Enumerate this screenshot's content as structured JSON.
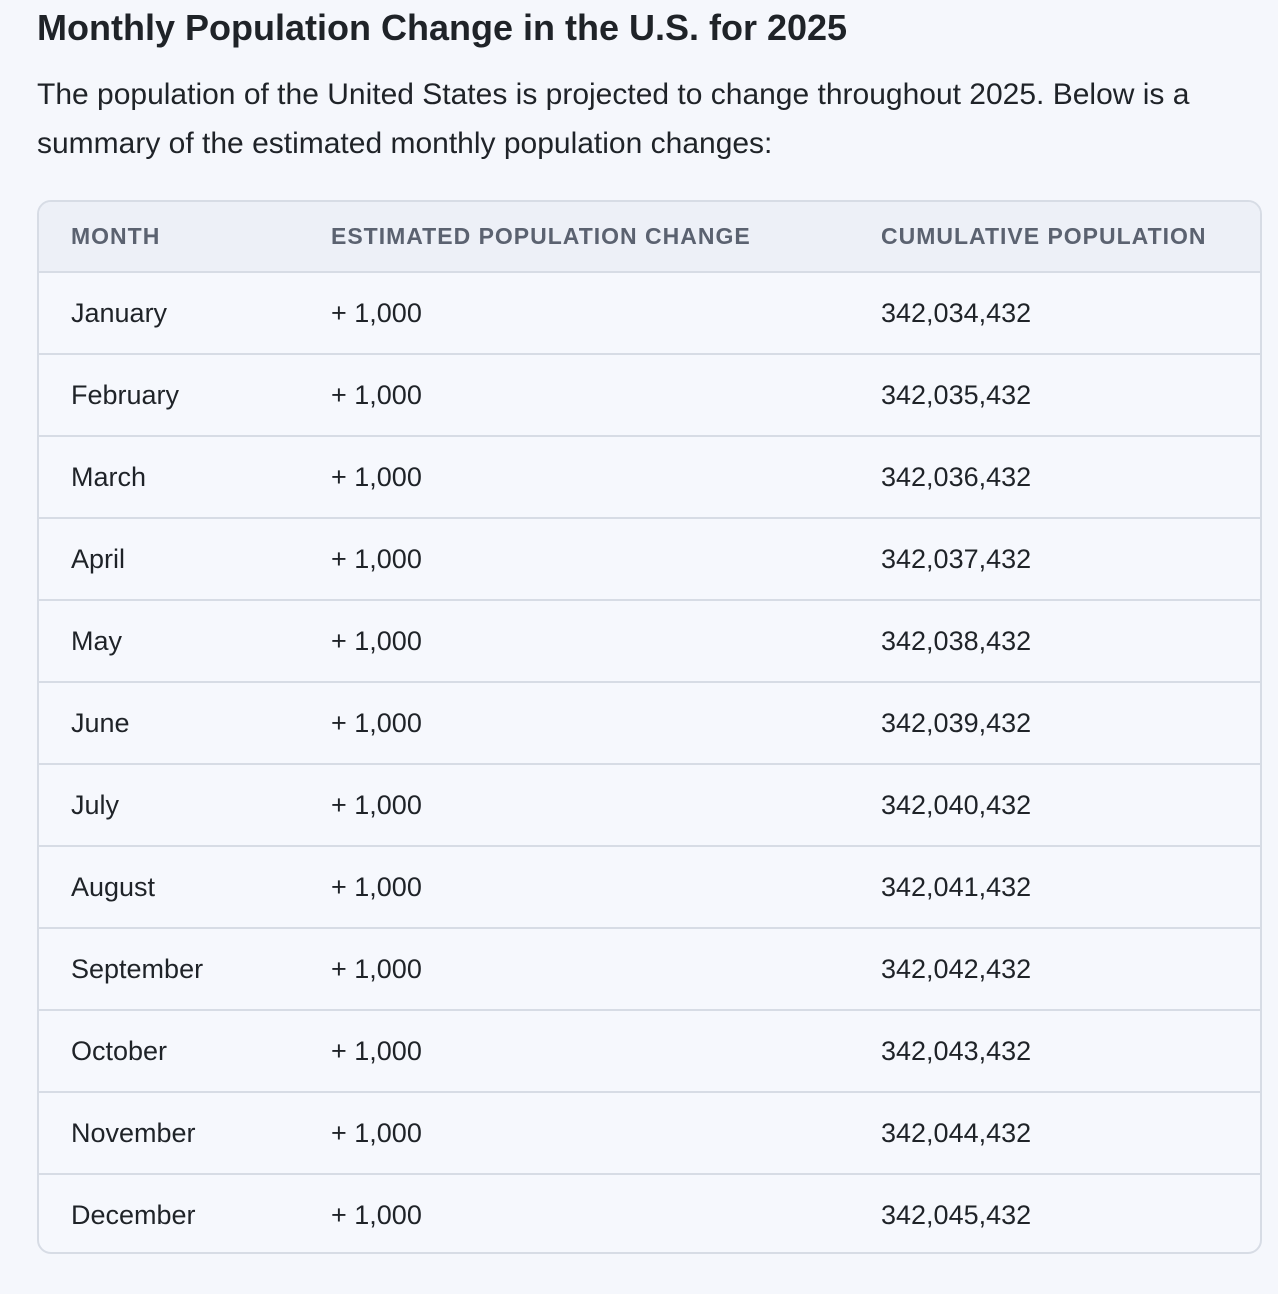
{
  "heading": "Monthly Population Change in the U.S. for 2025",
  "intro": "The population of the United States is projected to change throughout 2025. Below is a summary of the estimated monthly population changes:",
  "table": {
    "headers": [
      "MONTH",
      "ESTIMATED POPULATION CHANGE",
      "CUMULATIVE POPULATION"
    ],
    "rows": [
      {
        "month": "January",
        "change": "+ 1,000",
        "cumulative": "342,034,432"
      },
      {
        "month": "February",
        "change": "+ 1,000",
        "cumulative": "342,035,432"
      },
      {
        "month": "March",
        "change": "+ 1,000",
        "cumulative": "342,036,432"
      },
      {
        "month": "April",
        "change": "+ 1,000",
        "cumulative": "342,037,432"
      },
      {
        "month": "May",
        "change": "+ 1,000",
        "cumulative": "342,038,432"
      },
      {
        "month": "June",
        "change": "+ 1,000",
        "cumulative": "342,039,432"
      },
      {
        "month": "July",
        "change": "+ 1,000",
        "cumulative": "342,040,432"
      },
      {
        "month": "August",
        "change": "+ 1,000",
        "cumulative": "342,041,432"
      },
      {
        "month": "September",
        "change": "+ 1,000",
        "cumulative": "342,042,432"
      },
      {
        "month": "October",
        "change": "+ 1,000",
        "cumulative": "342,043,432"
      },
      {
        "month": "November",
        "change": "+ 1,000",
        "cumulative": "342,044,432"
      },
      {
        "month": "December",
        "change": "+ 1,000",
        "cumulative": "342,045,432"
      }
    ]
  }
}
